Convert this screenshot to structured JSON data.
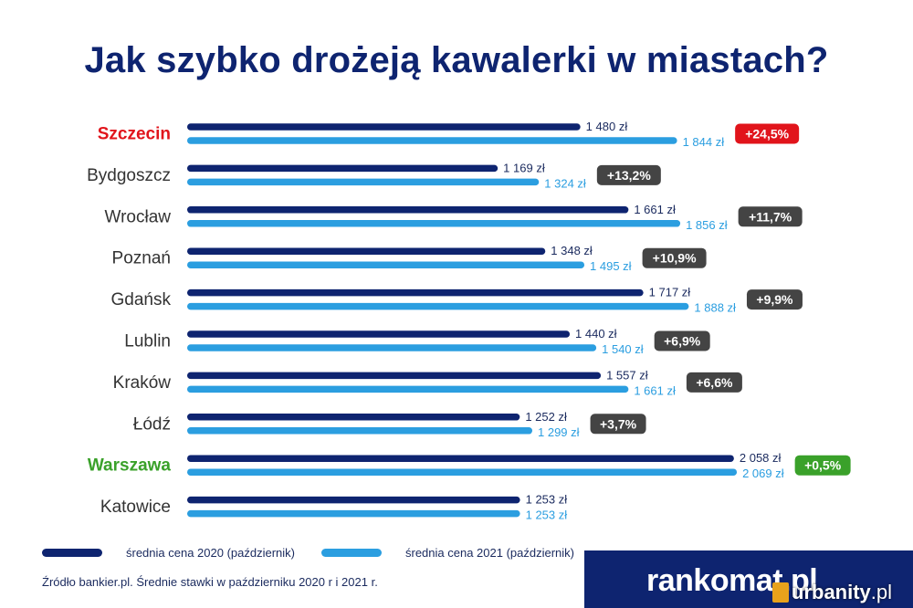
{
  "title": "Jak szybko drożeją kawalerki w miastach?",
  "colors": {
    "series_2020": "#0e2470",
    "series_2021": "#2b9ee0",
    "highlight_red": "#e1141b",
    "highlight_green": "#3aa12a",
    "badge_neutral": "#444444"
  },
  "chart_data": {
    "type": "bar",
    "orientation": "horizontal",
    "unit": "zł",
    "categories": [
      "Szczecin",
      "Bydgoszcz",
      "Wrocław",
      "Poznań",
      "Gdańsk",
      "Lublin",
      "Kraków",
      "Łódź",
      "Warszawa",
      "Katowice"
    ],
    "series": [
      {
        "name": "średnia cena 2020 (październik)",
        "values": [
          1480,
          1169,
          1661,
          1348,
          1717,
          1440,
          1557,
          1252,
          2058,
          1253
        ],
        "labels": [
          "1 480 zł",
          "1 169 zł",
          "1 661 zł",
          "1 348 zł",
          "1 717 zł",
          "1 440 zł",
          "1 557 zł",
          "1 252 zł",
          "2 058 zł",
          "1 253 zł"
        ]
      },
      {
        "name": "średnia cena 2021 (październik)",
        "values": [
          1844,
          1324,
          1856,
          1495,
          1888,
          1540,
          1661,
          1299,
          2069,
          1253
        ],
        "labels": [
          "1 844 zł",
          "1 324 zł",
          "1 856 zł",
          "1 495 zł",
          "1 888 zł",
          "1 540 zł",
          "1 661 zł",
          "1 299 zł",
          "2 069 zł",
          "1 253 zł"
        ]
      }
    ],
    "change_labels": [
      "+24,5%",
      "+13,2%",
      "+11,7%",
      "+10,9%",
      "+9,9%",
      "+6,9%",
      "+6,6%",
      "+3,7%",
      "+0,5%",
      ""
    ],
    "highlight": {
      "Szczecin": "red",
      "Warszawa": "green"
    },
    "xlim": [
      0,
      2100
    ],
    "grid": false,
    "legend_position": "bottom-left"
  },
  "legend": {
    "items": [
      {
        "label": "średnia cena 2020 (październik)"
      },
      {
        "label": "średnia cena 2021 (październik)"
      }
    ]
  },
  "source": "Źródło bankier.pl. Średnie stawki w październiku 2020 r i 2021 r.",
  "brand": "rankomat.pl",
  "watermark": {
    "name": "urbanity",
    "suffix": ".pl"
  }
}
